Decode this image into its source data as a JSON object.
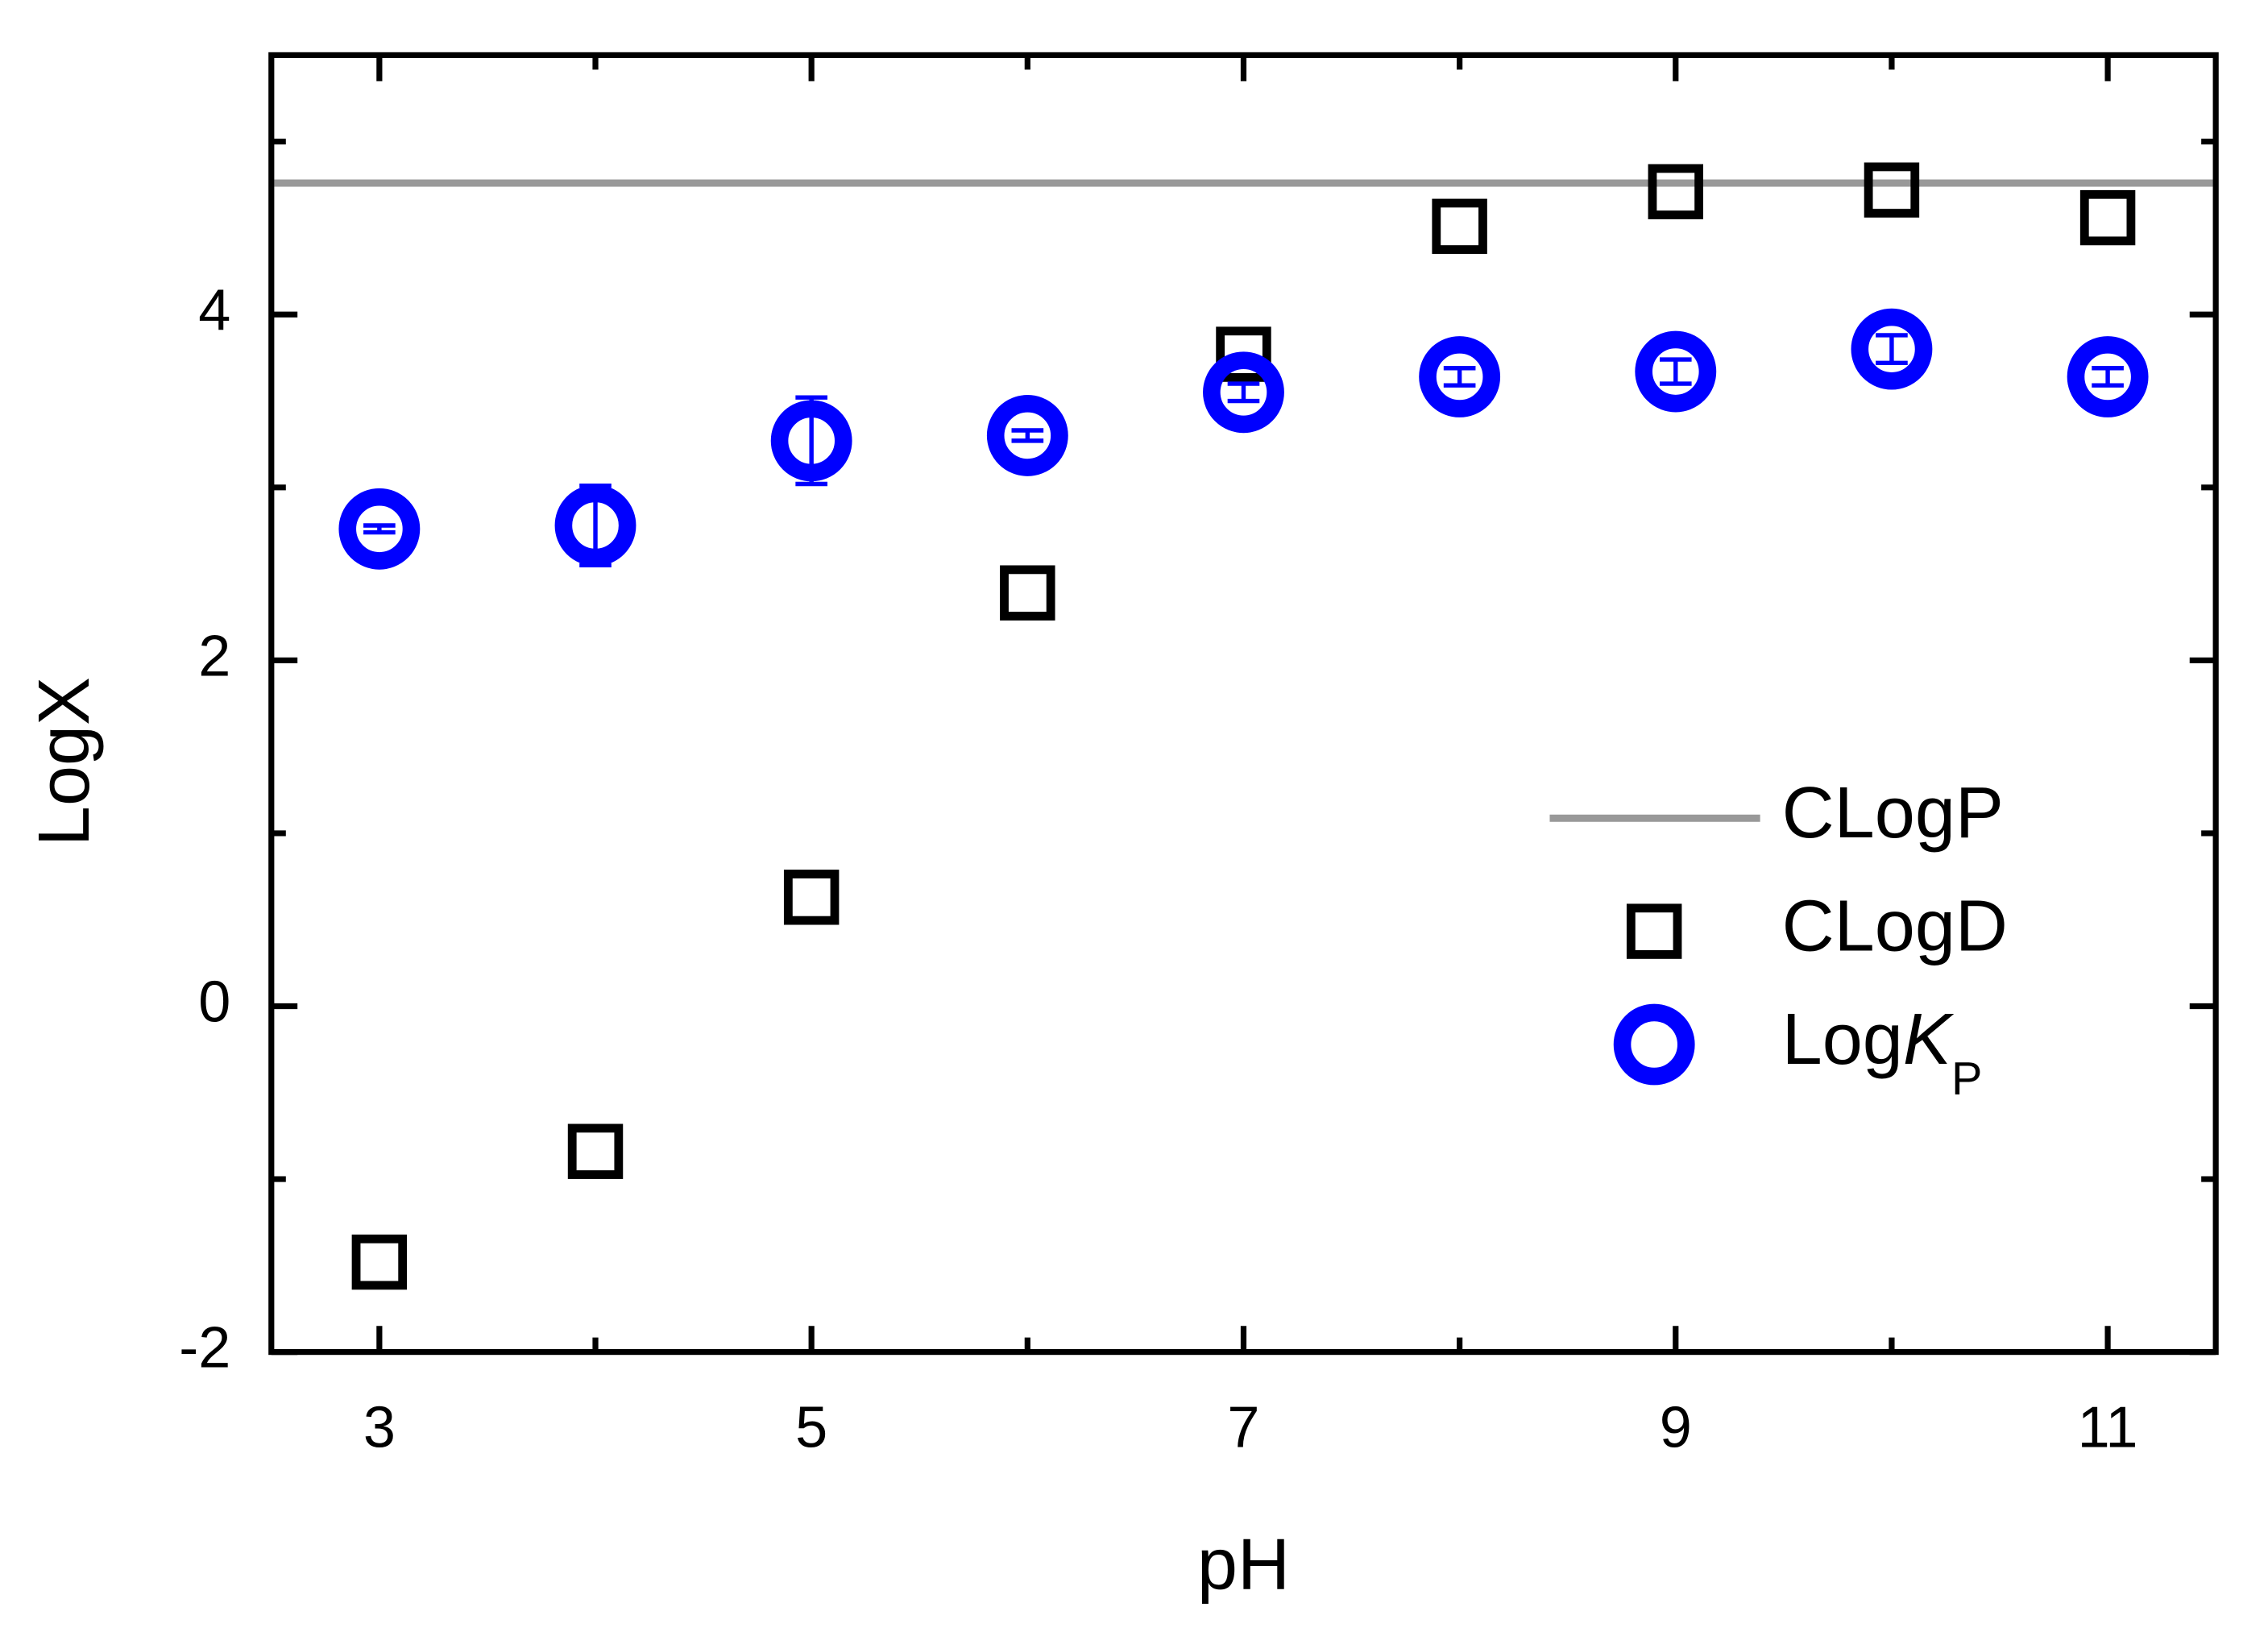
{
  "chart_data": {
    "type": "scatter",
    "x_label": "pH",
    "y_label": "LogX",
    "xlim": [
      2.5,
      11.5
    ],
    "xticks": [
      3,
      5,
      7,
      9,
      11
    ],
    "xminor": [
      4,
      6,
      8,
      10
    ],
    "ylim": [
      -2,
      5.5
    ],
    "yticks": [
      -2,
      0,
      2,
      4
    ],
    "yminor": [
      -1,
      1,
      3,
      5
    ],
    "legend": "right",
    "series": [
      {
        "name": "CLogP",
        "style": "hline",
        "color": "#999999",
        "values": [
          4.76
        ]
      },
      {
        "name": "CLogD",
        "style": "square",
        "color": "#000000",
        "x": [
          3,
          4,
          5,
          6,
          7,
          8,
          9,
          10,
          11
        ],
        "values": [
          -1.48,
          -0.84,
          0.63,
          2.39,
          3.77,
          4.51,
          4.71,
          4.72,
          4.56
        ]
      },
      {
        "name": "LogKP",
        "style": "circle",
        "color": "#0000ff",
        "x": [
          3,
          4,
          5,
          6,
          7,
          8,
          9,
          10,
          11
        ],
        "values": [
          2.76,
          2.78,
          3.27,
          3.3,
          3.55,
          3.64,
          3.67,
          3.8,
          3.64
        ],
        "errors": [
          0.02,
          0.23,
          0.25,
          0.03,
          0.05,
          0.05,
          0.07,
          0.08,
          0.05
        ]
      }
    ]
  }
}
